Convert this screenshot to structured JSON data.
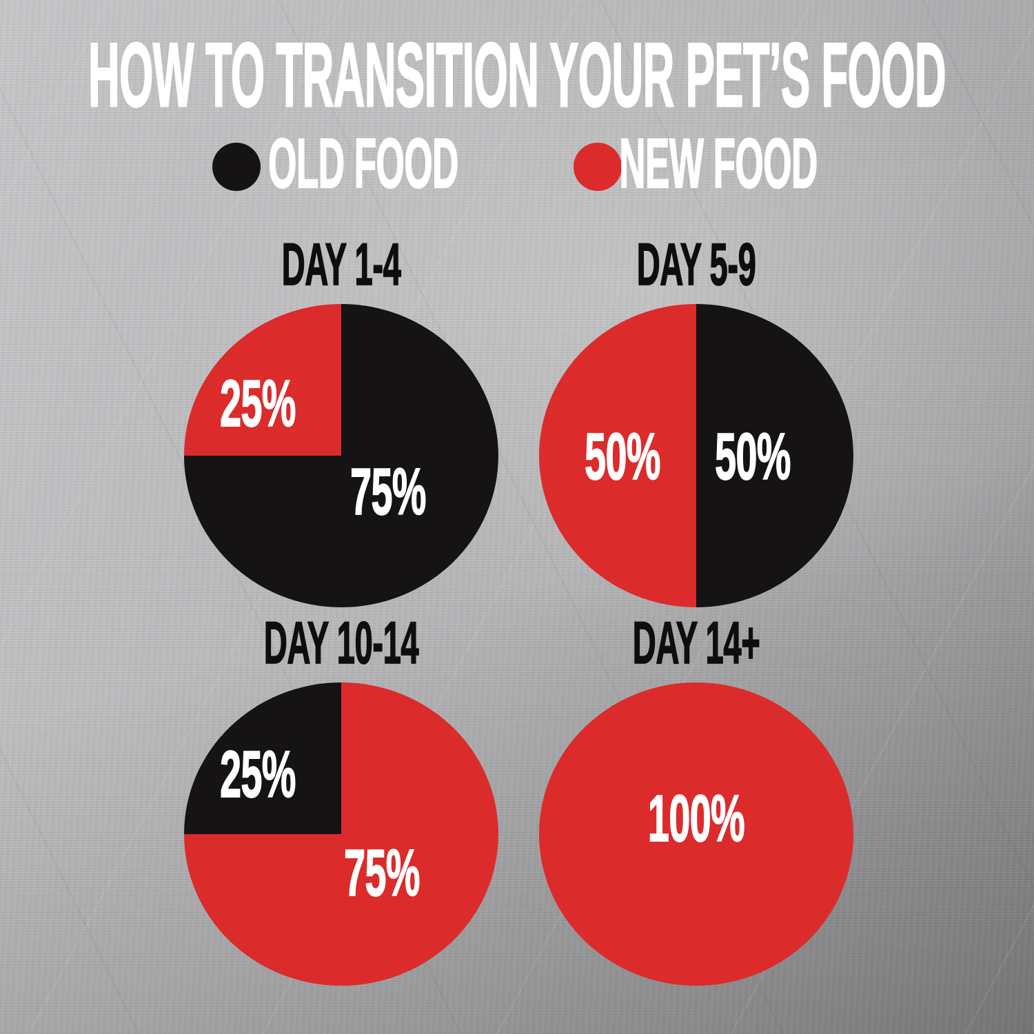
{
  "page_title": "HOW TO TRANSITION YOUR PET’S FOOD",
  "colors": {
    "old_food": "#161314",
    "new_food": "#DC2B2B",
    "background_metal": "#B3B3B5",
    "title_text": "#FFFFFF",
    "chart_title_text": "#0F0E0E",
    "percent_label_text": "#FFFFFF"
  },
  "legend": [
    {
      "key": "old-food",
      "label": "OLD FOOD",
      "color": "#161314"
    },
    {
      "key": "new-food",
      "label": "NEW FOOD",
      "color": "#DC2B2B"
    }
  ],
  "chart_data": [
    {
      "type": "pie",
      "title": "DAY 1-4",
      "start_angle_deg": 0,
      "slices": [
        {
          "key": "old-food",
          "series": "OLD FOOD",
          "value": 75,
          "color": "#161314",
          "label": "75%",
          "label_offset": [
            0.3,
            0.24
          ]
        },
        {
          "key": "new-food",
          "series": "NEW FOOD",
          "value": 25,
          "color": "#DC2B2B",
          "label": "25%",
          "label_offset": [
            -0.53,
            -0.34
          ]
        }
      ]
    },
    {
      "type": "pie",
      "title": "DAY 5-9",
      "start_angle_deg": 0,
      "slices": [
        {
          "key": "old-food",
          "series": "OLD FOOD",
          "value": 50,
          "color": "#161314",
          "label": "50%",
          "label_offset": [
            0.36,
            0.01
          ]
        },
        {
          "key": "new-food",
          "series": "NEW FOOD",
          "value": 50,
          "color": "#DC2B2B",
          "label": "50%",
          "label_offset": [
            -0.47,
            0.01
          ]
        }
      ]
    },
    {
      "type": "pie",
      "title": "DAY 10-14",
      "start_angle_deg": 0,
      "slices": [
        {
          "key": "new-food",
          "series": "NEW FOOD",
          "value": 75,
          "color": "#DC2B2B",
          "label": "75%",
          "label_offset": [
            0.26,
            0.26
          ]
        },
        {
          "key": "old-food",
          "series": "OLD FOOD",
          "value": 25,
          "color": "#161314",
          "label": "25%",
          "label_offset": [
            -0.53,
            -0.39
          ]
        }
      ]
    },
    {
      "type": "pie",
      "title": "DAY 14+",
      "start_angle_deg": 0,
      "slices": [
        {
          "key": "new-food",
          "series": "NEW FOOD",
          "value": 100,
          "color": "#DC2B2B",
          "label": "100%",
          "label_offset": [
            0.0,
            -0.1
          ]
        }
      ]
    }
  ]
}
